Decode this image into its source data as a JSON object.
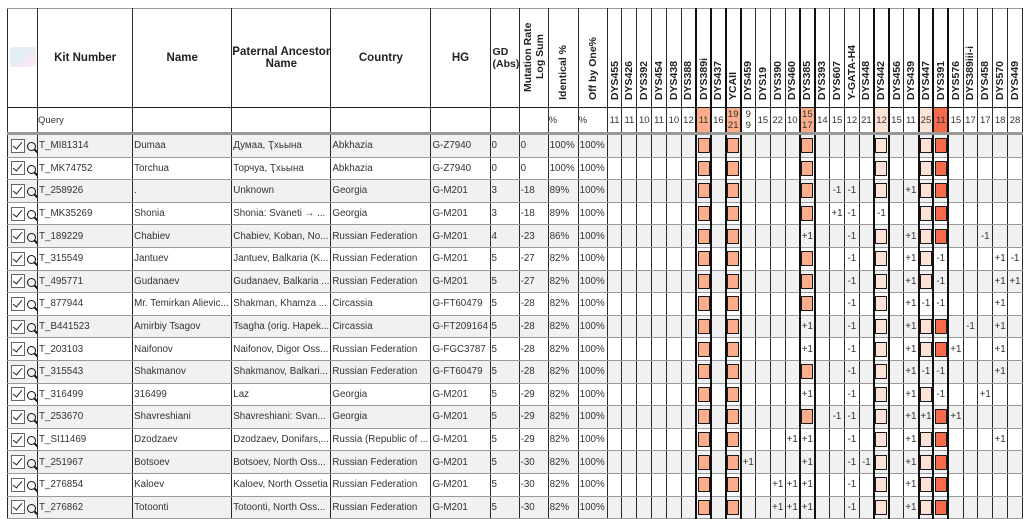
{
  "header": {
    "kit_number": "Kit Number",
    "name": "Name",
    "paternal": "Paternal Ancestor Name",
    "country": "Country",
    "hg": "HG",
    "gd": "GD (Abs)",
    "mutation": "Mutation Rate Log Sum",
    "identical": "Identical %",
    "off_by_one": "Off by One%",
    "markers": [
      "DYS455",
      "DYS426",
      "DYS392",
      "DYS454",
      "DYS438",
      "DYS388",
      "DYS389i",
      "DYS437",
      "YCAII",
      "DYS459",
      "DYS19",
      "DYS390",
      "DYS460",
      "DYS385",
      "DYS393",
      "DYS607",
      "Y-GATA-H4",
      "DYS448",
      "DYS442",
      "DYS456",
      "DYS439",
      "DYS447",
      "DYS391",
      "DYS576",
      "DYS389iii-i",
      "DYS458",
      "DYS570",
      "DYS449"
    ]
  },
  "query": {
    "label": "Query",
    "identical": "%",
    "off_by_one": "%",
    "values": [
      "11",
      "11",
      "10",
      "11",
      "10",
      "12",
      "11",
      "16",
      "19\n21",
      "9\n9",
      "15",
      "22",
      "10",
      "15\n17",
      "14",
      "15",
      "12",
      "21",
      "12",
      "15",
      "11",
      "25",
      "11",
      "15",
      "17",
      "17",
      "18",
      "28"
    ],
    "highlight": [
      "",
      "",
      "",
      "",
      "",
      "",
      "mid",
      "",
      "mid",
      "",
      "",
      "",
      "",
      "mid",
      "",
      "",
      "",
      "",
      "light",
      "",
      "",
      "light",
      "dark",
      "",
      "",
      "",
      "",
      ""
    ]
  },
  "colors": {
    "mid": "#fbad8c",
    "light": "#fde2d7",
    "dark": "#f76a4c"
  },
  "rows": [
    {
      "kit": "T_MI81314",
      "name": "Dumaa",
      "paternal": "Думаа, Ҭхьына",
      "country": "Abkhazia",
      "hg": "G-Z7940",
      "gd": "0",
      "mut": "0",
      "ident": "100%",
      "off": "100%",
      "markers": {
        "6": "diff",
        "8": "diff",
        "13": "diff",
        "18": "diff",
        "21": "diff",
        "22": "diff"
      }
    },
    {
      "kit": "T_MK74752",
      "name": "Torchua",
      "paternal": "Торчуа, Ҭхьына",
      "country": "Abkhazia",
      "hg": "G-Z7940",
      "gd": "0",
      "mut": "0",
      "ident": "100%",
      "off": "100%",
      "markers": {
        "6": "diff",
        "8": "diff",
        "13": "diff",
        "18": "diff",
        "21": "diff",
        "22": "diff"
      }
    },
    {
      "kit": "T_258926",
      "name": ".",
      "paternal": "Unknown",
      "country": "Georgia",
      "hg": "G-M201",
      "gd": "3",
      "mut": "-18",
      "ident": "89%",
      "off": "100%",
      "markers": {
        "6": "diff",
        "8": "diff",
        "13": "diff",
        "15": "-1",
        "16": "-1",
        "18": "diff",
        "20": "+1",
        "21": "diff",
        "22": "diff"
      }
    },
    {
      "kit": "T_MK35269",
      "name": "Shonia",
      "paternal": "Shonia: Svaneti → ...",
      "country": "Georgia",
      "hg": "G-M201",
      "gd": "3",
      "mut": "-18",
      "ident": "89%",
      "off": "100%",
      "markers": {
        "6": "diff",
        "8": "diff",
        "13": "diff",
        "15": "+1",
        "16": "-1",
        "18": "-1",
        "21": "diff",
        "22": "diff"
      }
    },
    {
      "kit": "T_189229",
      "name": "Chabiev",
      "paternal": "Chabiev, Koban, No...",
      "country": "Russian Federation",
      "hg": "G-M201",
      "gd": "4",
      "mut": "-23",
      "ident": "86%",
      "off": "100%",
      "markers": {
        "6": "diff",
        "8": "diff",
        "13": "+1",
        "16": "-1",
        "18": "diff",
        "20": "+1",
        "21": "diff",
        "22": "diff",
        "25": "-1"
      }
    },
    {
      "kit": "T_315549",
      "name": "Jantuev",
      "paternal": "Jantuev, Balkaria (K...",
      "country": "Russian Federation",
      "hg": "G-M201",
      "gd": "5",
      "mut": "-27",
      "ident": "82%",
      "off": "100%",
      "markers": {
        "6": "diff",
        "8": "diff",
        "13": "diff",
        "16": "-1",
        "18": "diff",
        "20": "+1",
        "21": "diff",
        "22": "-1",
        "26": "+1",
        "27": "-1"
      }
    },
    {
      "kit": "T_495771",
      "name": "Gudanaev",
      "paternal": "Gudanaev, Balkaria ...",
      "country": "Russian Federation",
      "hg": "G-M201",
      "gd": "5",
      "mut": "-27",
      "ident": "82%",
      "off": "100%",
      "markers": {
        "6": "diff",
        "8": "diff",
        "13": "diff",
        "16": "-1",
        "18": "diff",
        "20": "+1",
        "21": "diff",
        "22": "-1",
        "26": "+1",
        "27": "+1"
      }
    },
    {
      "kit": "T_877944",
      "name": "Mr. Temirkan Alievic...",
      "paternal": "Shakman, Khamza ...",
      "country": "Circassia",
      "hg": "G-FT60479",
      "gd": "5",
      "mut": "-28",
      "ident": "82%",
      "off": "100%",
      "markers": {
        "6": "diff",
        "8": "diff",
        "13": "diff",
        "16": "-1",
        "18": "diff",
        "20": "+1",
        "21": "-1",
        "22": "-1",
        "26": "+1"
      }
    },
    {
      "kit": "T_B441523",
      "name": "Amirbiy Tsagov",
      "paternal": "Tsagha (orig. Hapek...",
      "country": "Circassia",
      "hg": "G-FT209164",
      "gd": "5",
      "mut": "-28",
      "ident": "82%",
      "off": "100%",
      "markers": {
        "6": "diff",
        "8": "diff",
        "13": "+1",
        "16": "-1",
        "18": "diff",
        "20": "+1",
        "21": "diff",
        "22": "diff",
        "24": "-1",
        "26": "+1"
      }
    },
    {
      "kit": "T_203103",
      "name": "Naifonov",
      "paternal": "Naifonov, Digor Oss...",
      "country": "Russian Federation",
      "hg": "G-FGC3787",
      "gd": "5",
      "mut": "-28",
      "ident": "82%",
      "off": "100%",
      "markers": {
        "6": "diff",
        "8": "diff",
        "13": "+1",
        "16": "-1",
        "18": "diff",
        "20": "+1",
        "21": "diff",
        "22": "diff",
        "23": "+1",
        "26": "+1"
      }
    },
    {
      "kit": "T_315543",
      "name": "Shakmanov",
      "paternal": "Shakmanov, Balkari...",
      "country": "Russian Federation",
      "hg": "G-FT60479",
      "gd": "5",
      "mut": "-28",
      "ident": "82%",
      "off": "100%",
      "markers": {
        "6": "diff",
        "8": "diff",
        "13": "diff",
        "16": "-1",
        "18": "diff",
        "20": "+1",
        "21": "-1",
        "22": "-1",
        "26": "+1"
      }
    },
    {
      "kit": "T_316499",
      "name": "316499",
      "paternal": "Laz",
      "country": "Georgia",
      "hg": "G-M201",
      "gd": "5",
      "mut": "-29",
      "ident": "82%",
      "off": "100%",
      "markers": {
        "6": "diff",
        "8": "diff",
        "13": "+1",
        "16": "-1",
        "18": "diff",
        "20": "+1",
        "21": "diff",
        "22": "-1",
        "25": "+1"
      }
    },
    {
      "kit": "T_253670",
      "name": "Shavreshiani",
      "paternal": "Shavreshiani: Svan...",
      "country": "Georgia",
      "hg": "G-M201",
      "gd": "5",
      "mut": "-29",
      "ident": "82%",
      "off": "100%",
      "markers": {
        "6": "diff",
        "8": "diff",
        "13": "diff",
        "15": "-1",
        "16": "-1",
        "18": "diff",
        "20": "+1",
        "21": "+1",
        "22": "diff",
        "23": "+1"
      }
    },
    {
      "kit": "T_SI11469",
      "name": "Dzodzaev",
      "paternal": "Dzodzaev, Donifars,...",
      "country": "Russia (Republic of ...",
      "hg": "G-M201",
      "gd": "5",
      "mut": "-29",
      "ident": "82%",
      "off": "100%",
      "markers": {
        "6": "diff",
        "8": "diff",
        "12": "+1",
        "13": "+1",
        "16": "-1",
        "18": "diff",
        "20": "+1",
        "21": "diff",
        "22": "diff",
        "26": "+1"
      }
    },
    {
      "kit": "T_251967",
      "name": "Botsoev",
      "paternal": "Botsoev, North Oss...",
      "country": "Russian Federation",
      "hg": "G-M201",
      "gd": "5",
      "mut": "-30",
      "ident": "82%",
      "off": "100%",
      "markers": {
        "6": "diff",
        "8": "diff",
        "9": "+1",
        "13": "+1",
        "16": "-1",
        "17": "-1",
        "18": "diff",
        "20": "+1",
        "21": "diff",
        "22": "diff"
      }
    },
    {
      "kit": "T_276854",
      "name": "Kaloev",
      "paternal": "Kaloev, North Ossetia",
      "country": "Russian Federation",
      "hg": "G-M201",
      "gd": "5",
      "mut": "-30",
      "ident": "82%",
      "off": "100%",
      "markers": {
        "6": "diff",
        "8": "diff",
        "11": "+1",
        "12": "+1",
        "13": "+1",
        "16": "-1",
        "18": "diff",
        "20": "+1",
        "21": "diff",
        "22": "diff"
      }
    },
    {
      "kit": "T_276862",
      "name": "Totoonti",
      "paternal": "Totoonti, North Oss...",
      "country": "Russian Federation",
      "hg": "G-M201",
      "gd": "5",
      "mut": "-30",
      "ident": "82%",
      "off": "100%",
      "markers": {
        "6": "diff",
        "8": "diff",
        "11": "+1",
        "12": "+1",
        "13": "+1",
        "16": "-1",
        "18": "diff",
        "20": "+1",
        "21": "diff",
        "22": "diff"
      }
    }
  ]
}
